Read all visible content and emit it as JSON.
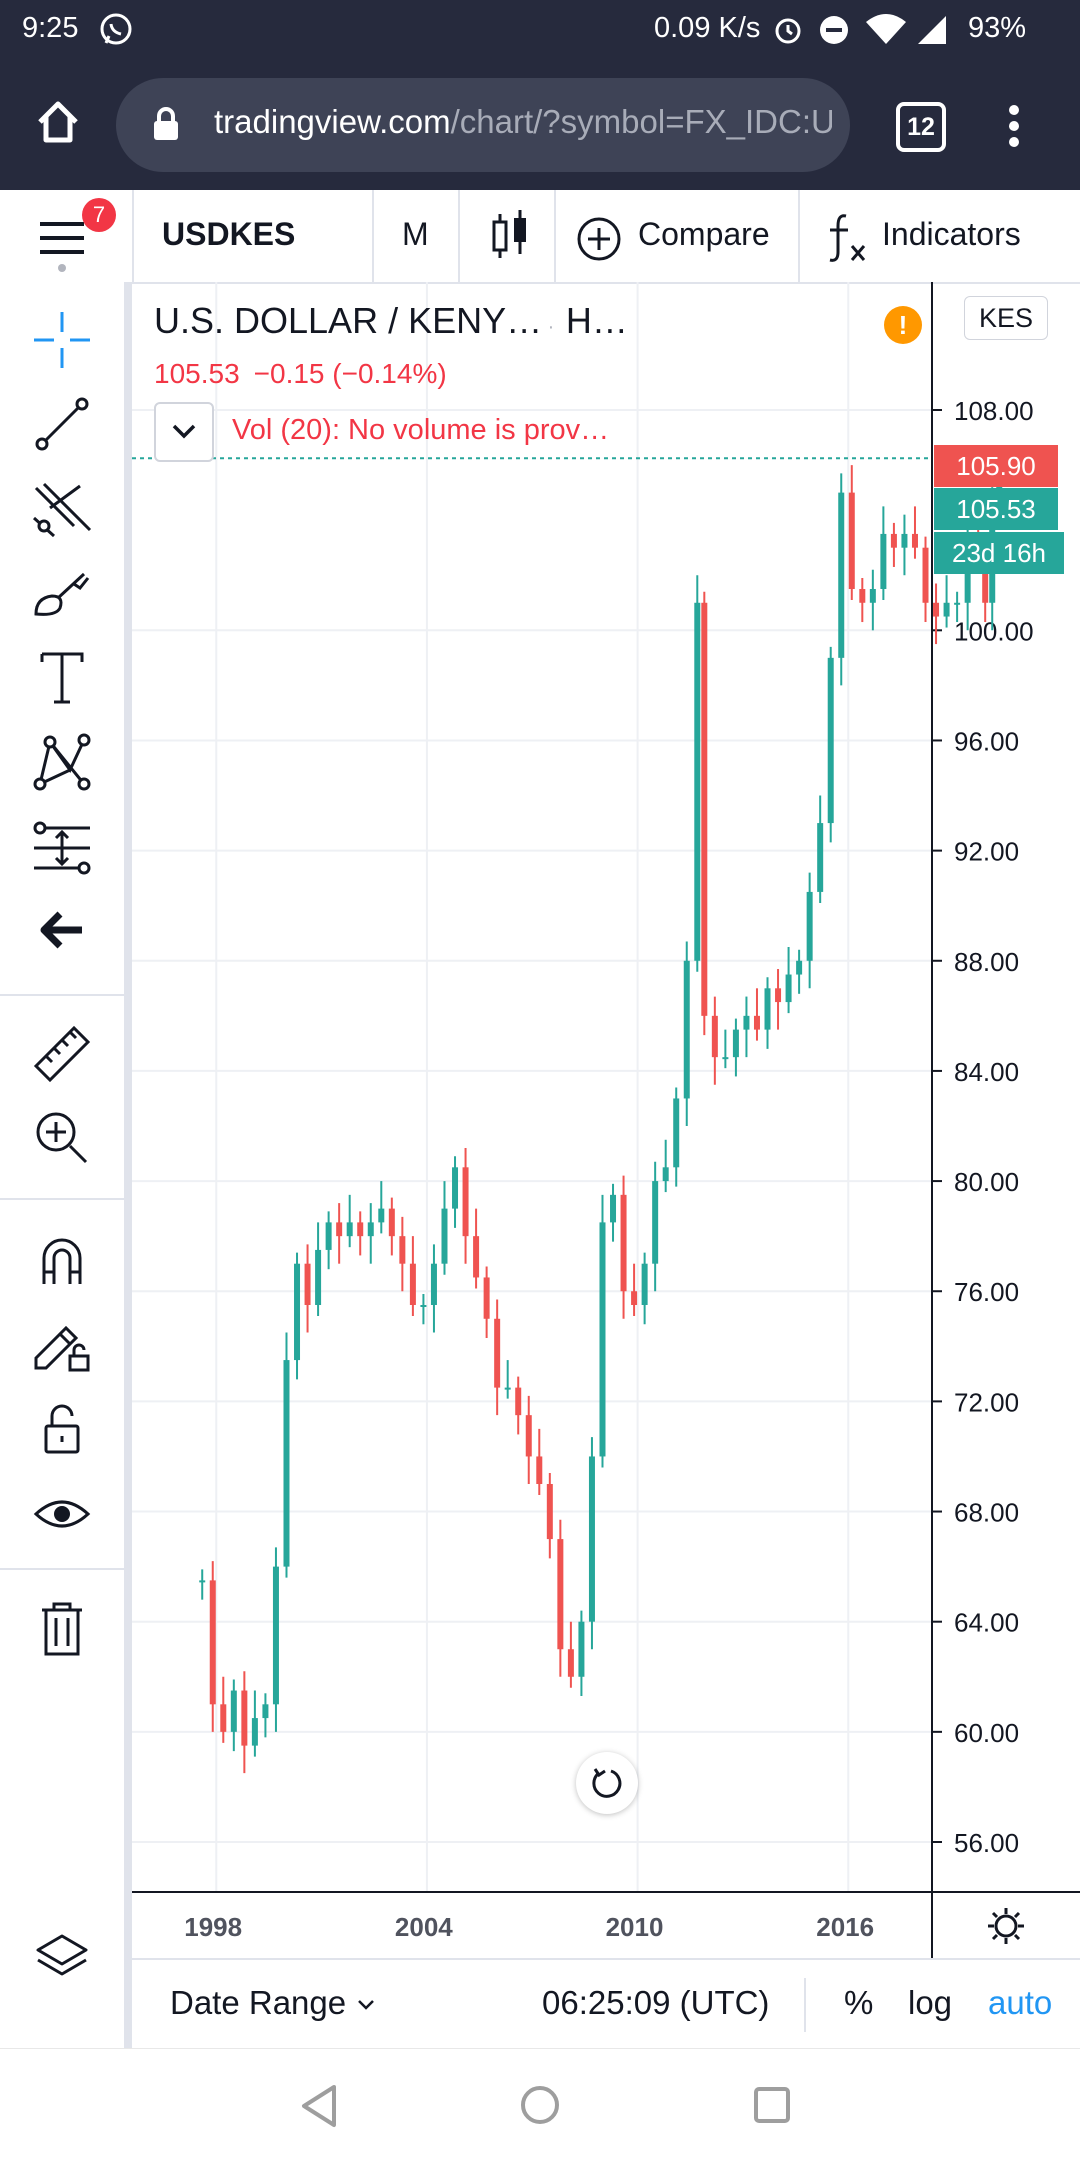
{
  "status_bar": {
    "time": "9:25",
    "speed": "0.09 K/s",
    "battery": "93%",
    "icons": [
      "whatsapp-icon",
      "alarm-icon",
      "dnd-icon",
      "wifi-icon",
      "signal-icon"
    ]
  },
  "browser": {
    "url_host": "tradingview.com",
    "url_path": "/chart/?symbol=FX_IDC:U",
    "tab_count": "12"
  },
  "toolbar": {
    "menu_badge": "7",
    "symbol": "USDKES",
    "interval": "M",
    "compare_label": "Compare",
    "indicators_label": "Indicators"
  },
  "legend": {
    "title": "U.S. DOLLAR / KENY…",
    "source": "H…",
    "price": "105.53",
    "change": "−0.15 (−0.14%)",
    "volume_note": "Vol (20): No volume is prov…",
    "currency": "KES"
  },
  "price_tags": {
    "high": "105.90",
    "last": "105.53",
    "countdown": "23d 16h"
  },
  "bottom_bar": {
    "date_range_label": "Date Range",
    "clock": "06:25:09 (UTC)",
    "percent_label": "%",
    "log_label": "log",
    "auto_label": "auto"
  },
  "colors": {
    "up": "#26a69a",
    "down": "#ef5350",
    "accent": "#2196f3",
    "header": "#262a3d"
  },
  "chart_data": {
    "type": "candlestick",
    "title": "U.S. DOLLAR / KENY…",
    "xlabel": "",
    "ylabel": "",
    "y_ticks": [
      "56.00",
      "60.00",
      "64.00",
      "68.00",
      "72.00",
      "76.00",
      "80.00",
      "84.00",
      "88.00",
      "92.00",
      "96.00",
      "100.00",
      "108.00"
    ],
    "x_ticks": [
      "1998",
      "2004",
      "2010",
      "2016"
    ],
    "ylim": [
      54,
      112
    ],
    "xlim": [
      1995.6,
      2022.6
    ],
    "grid": true,
    "interval": "monthly",
    "points": [
      [
        1997.6,
        65.5
      ],
      [
        1997.9,
        61.0
      ],
      [
        1998.2,
        60.0
      ],
      [
        1998.5,
        61.5
      ],
      [
        1998.8,
        59.5
      ],
      [
        1999.1,
        60.5
      ],
      [
        1999.4,
        61.0
      ],
      [
        1999.7,
        66.0
      ],
      [
        2000.0,
        73.5
      ],
      [
        2000.3,
        77.0
      ],
      [
        2000.6,
        75.5
      ],
      [
        2000.9,
        77.5
      ],
      [
        2001.2,
        78.5
      ],
      [
        2001.5,
        78.0
      ],
      [
        2001.8,
        78.5
      ],
      [
        2002.1,
        78.0
      ],
      [
        2002.4,
        78.5
      ],
      [
        2002.7,
        79.0
      ],
      [
        2003.0,
        78.0
      ],
      [
        2003.3,
        77.0
      ],
      [
        2003.6,
        75.5
      ],
      [
        2003.9,
        75.5
      ],
      [
        2004.2,
        77.0
      ],
      [
        2004.5,
        79.0
      ],
      [
        2004.8,
        80.5
      ],
      [
        2005.1,
        78.0
      ],
      [
        2005.4,
        76.5
      ],
      [
        2005.7,
        75.0
      ],
      [
        2006.0,
        72.5
      ],
      [
        2006.3,
        72.5
      ],
      [
        2006.6,
        71.5
      ],
      [
        2006.9,
        70.0
      ],
      [
        2007.2,
        69.0
      ],
      [
        2007.5,
        67.0
      ],
      [
        2007.8,
        63.0
      ],
      [
        2008.1,
        62.0
      ],
      [
        2008.4,
        64.0
      ],
      [
        2008.7,
        70.0
      ],
      [
        2009.0,
        78.5
      ],
      [
        2009.3,
        79.5
      ],
      [
        2009.6,
        76.0
      ],
      [
        2009.9,
        75.5
      ],
      [
        2010.2,
        77.0
      ],
      [
        2010.5,
        80.0
      ],
      [
        2010.8,
        80.5
      ],
      [
        2011.1,
        83.0
      ],
      [
        2011.4,
        88.0
      ],
      [
        2011.7,
        101.0
      ],
      [
        2011.9,
        86.0
      ],
      [
        2012.2,
        84.5
      ],
      [
        2012.5,
        84.5
      ],
      [
        2012.8,
        85.5
      ],
      [
        2013.1,
        86.0
      ],
      [
        2013.4,
        85.5
      ],
      [
        2013.7,
        87.0
      ],
      [
        2014.0,
        86.5
      ],
      [
        2014.3,
        87.5
      ],
      [
        2014.6,
        88.0
      ],
      [
        2014.9,
        90.5
      ],
      [
        2015.2,
        93.0
      ],
      [
        2015.5,
        99.0
      ],
      [
        2015.8,
        105.0
      ],
      [
        2016.1,
        101.5
      ],
      [
        2016.4,
        101.0
      ],
      [
        2016.7,
        101.5
      ],
      [
        2017.0,
        103.5
      ],
      [
        2017.3,
        103.0
      ],
      [
        2017.6,
        103.5
      ],
      [
        2017.9,
        103.0
      ],
      [
        2018.2,
        101.0
      ],
      [
        2018.5,
        100.5
      ],
      [
        2018.8,
        101.0
      ],
      [
        2019.1,
        101.0
      ],
      [
        2019.4,
        103.5
      ],
      [
        2019.7,
        103.0
      ],
      [
        2019.9,
        101.0
      ],
      [
        2020.1,
        104.5
      ],
      [
        2020.3,
        105.53
      ]
    ]
  }
}
